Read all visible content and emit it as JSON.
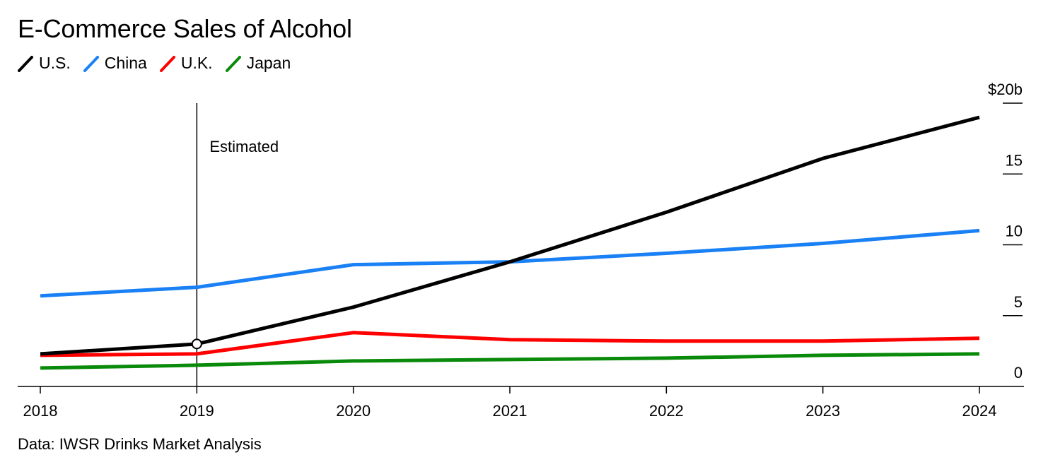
{
  "chart_data": {
    "type": "line",
    "title": "E-Commerce Sales of Alcohol",
    "source": "Data: IWSR Drinks Market Analysis",
    "annotation": "Estimated",
    "annotation_x": 2019,
    "x": [
      2018,
      2019,
      2020,
      2021,
      2022,
      2023,
      2024
    ],
    "x_tick_labels": [
      "2018",
      "2019",
      "2020",
      "2021",
      "2022",
      "2023",
      "2024"
    ],
    "y_tick_values": [
      0,
      5,
      10,
      15,
      20
    ],
    "y_tick_labels": [
      "0",
      "5",
      "10",
      "15",
      "$20b"
    ],
    "ylim": [
      0,
      20
    ],
    "xlim": [
      2018,
      2024
    ],
    "grid": false,
    "legend_position": "top-left",
    "y_axis_side": "right",
    "series": [
      {
        "name": "U.S.",
        "color": "#000000",
        "values": [
          2.3,
          3.0,
          5.6,
          8.8,
          12.3,
          16.1,
          19.0
        ]
      },
      {
        "name": "China",
        "color": "#1a80f5",
        "values": [
          6.4,
          7.0,
          8.6,
          8.8,
          9.4,
          10.1,
          11.0
        ]
      },
      {
        "name": "U.K.",
        "color": "#ff0000",
        "values": [
          2.2,
          2.3,
          3.8,
          3.3,
          3.2,
          3.2,
          3.4
        ]
      },
      {
        "name": "Japan",
        "color": "#0a8a0a",
        "values": [
          1.3,
          1.5,
          1.8,
          1.9,
          2.0,
          2.2,
          2.3
        ]
      }
    ]
  }
}
